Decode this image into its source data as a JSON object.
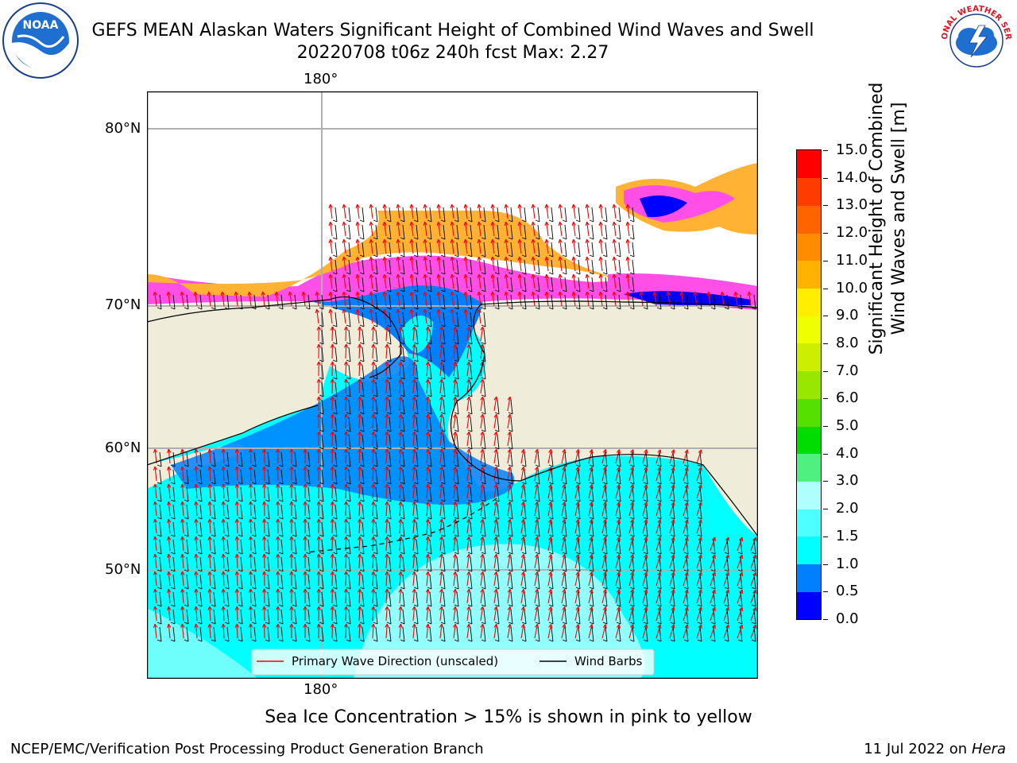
{
  "header": {
    "title": "GEFS MEAN Alaskan Waters Significant Height of Combined Wind Waves and Swell",
    "subtitle": "20220708 t06z 240h fcst   Max: 2.27"
  },
  "map": {
    "lon_label_top": "180°",
    "lon_label_bottom": "180°",
    "lat_labels": [
      "80°N",
      "70°N",
      "60°N",
      "50°N"
    ],
    "legend": {
      "wave_direction": "Primary Wave Direction (unscaled)",
      "wind_barbs": "Wind Barbs"
    },
    "colors": {
      "land": "#efecda",
      "ocean_main": "#00ffff",
      "ocean_light": "#b8fffb",
      "ocean_shelf": "#0080ff",
      "ice_pink": "#ff4fe6",
      "ice_orange": "#ffb233",
      "ice_blue": "#0000ff",
      "arrow": "#ff0000",
      "barb": "#000000",
      "grid": "#b0b0b0"
    }
  },
  "colorbar": {
    "label_line1": "Significant Height of Combined",
    "label_line2": "Wind Waves and Swell [m]",
    "ticks": [
      "0.0",
      "0.5",
      "1.0",
      "1.5",
      "2.0",
      "3.0",
      "4.0",
      "5.0",
      "6.0",
      "7.0",
      "8.0",
      "9.0",
      "10.0",
      "11.0",
      "12.0",
      "13.0",
      "14.0",
      "15.0"
    ],
    "colors": [
      "#0000ff",
      "#0080ff",
      "#00ffff",
      "#4dffff",
      "#b0ffff",
      "#50f080",
      "#00dd00",
      "#55e000",
      "#99e600",
      "#ccee00",
      "#eeff00",
      "#ffee00",
      "#ffb200",
      "#ff8c00",
      "#ff6400",
      "#ff3c00",
      "#ff0000"
    ]
  },
  "footer": {
    "ice_note": "Sea Ice Concentration > 15% is shown in pink to yellow",
    "credit": "NCEP/EMC/Verification Post Processing Product Generation Branch",
    "date": "11 Jul 2022 on",
    "host": "Hera"
  },
  "logos": {
    "noaa_text": "NOAA",
    "nws_text": "NATIONAL WEATHER SERVICE"
  }
}
